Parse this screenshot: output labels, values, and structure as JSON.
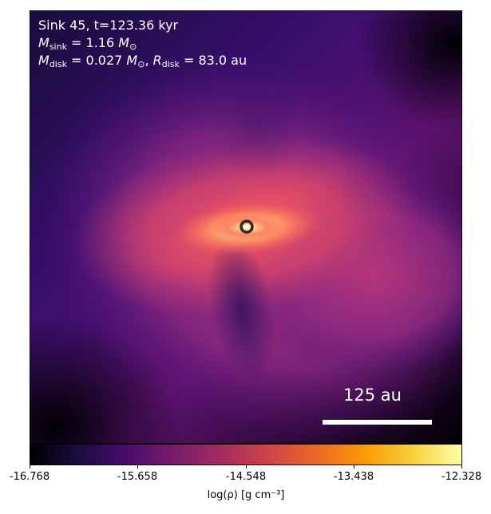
{
  "plot": {
    "title_line": "Sink 45, t=123.36 kyr",
    "msink": {
      "symbol": "M",
      "sub": "sink",
      "value": " = 1.16 ",
      "unit": "M",
      "unit_sub": "⊙"
    },
    "mdisk": {
      "symbol": "M",
      "sub": "disk",
      "value": " = 0.027 ",
      "unit": "M",
      "unit_sub": "⊙",
      "sep": ", ",
      "r_symbol": "R",
      "r_sub": "disk",
      "r_value": " = 83.0 au"
    },
    "scale_bar_label": "125 au"
  },
  "colorbar": {
    "ticks": [
      "-16.768",
      "-15.658",
      "-14.548",
      "-13.438",
      "-12.328"
    ],
    "label": "log(ρ) [g cm⁻³]"
  },
  "colors": {
    "background": "#000004",
    "disk_core": "#fcffa4",
    "envelope": "#b63679"
  }
}
